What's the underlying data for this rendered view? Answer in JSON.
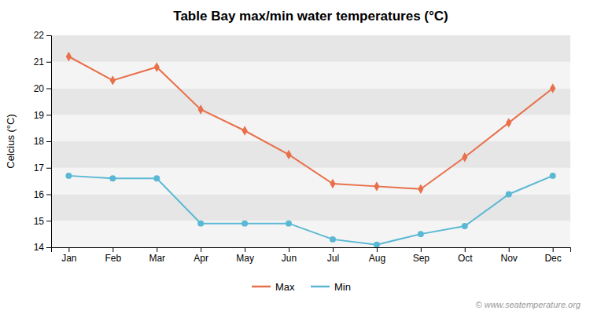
{
  "chart_data": {
    "type": "line",
    "title": "Table Bay max/min water temperatures (°C)",
    "ylabel": "Celcius (°C)",
    "annotations": [
      "© www.seatemperature.org"
    ],
    "categories": [
      "Jan",
      "Feb",
      "Mar",
      "Apr",
      "May",
      "Jun",
      "Jul",
      "Aug",
      "Sep",
      "Oct",
      "Nov",
      "Dec"
    ],
    "series": [
      {
        "name": "Max",
        "color": "#e8704a",
        "marker": "diamond",
        "values": [
          21.2,
          20.3,
          20.8,
          19.2,
          18.4,
          17.5,
          16.4,
          16.3,
          16.2,
          17.4,
          18.7,
          20.0
        ]
      },
      {
        "name": "Min",
        "color": "#5bb8d4",
        "marker": "circle",
        "values": [
          16.7,
          16.6,
          16.6,
          14.9,
          14.9,
          14.9,
          14.3,
          14.1,
          14.5,
          14.8,
          16.0,
          16.7
        ]
      }
    ],
    "ylim": [
      14.0,
      22.0
    ],
    "yticks": [
      14,
      15,
      16,
      17,
      18,
      19,
      20,
      21,
      22
    ],
    "grid": true,
    "legend": "bottom"
  }
}
